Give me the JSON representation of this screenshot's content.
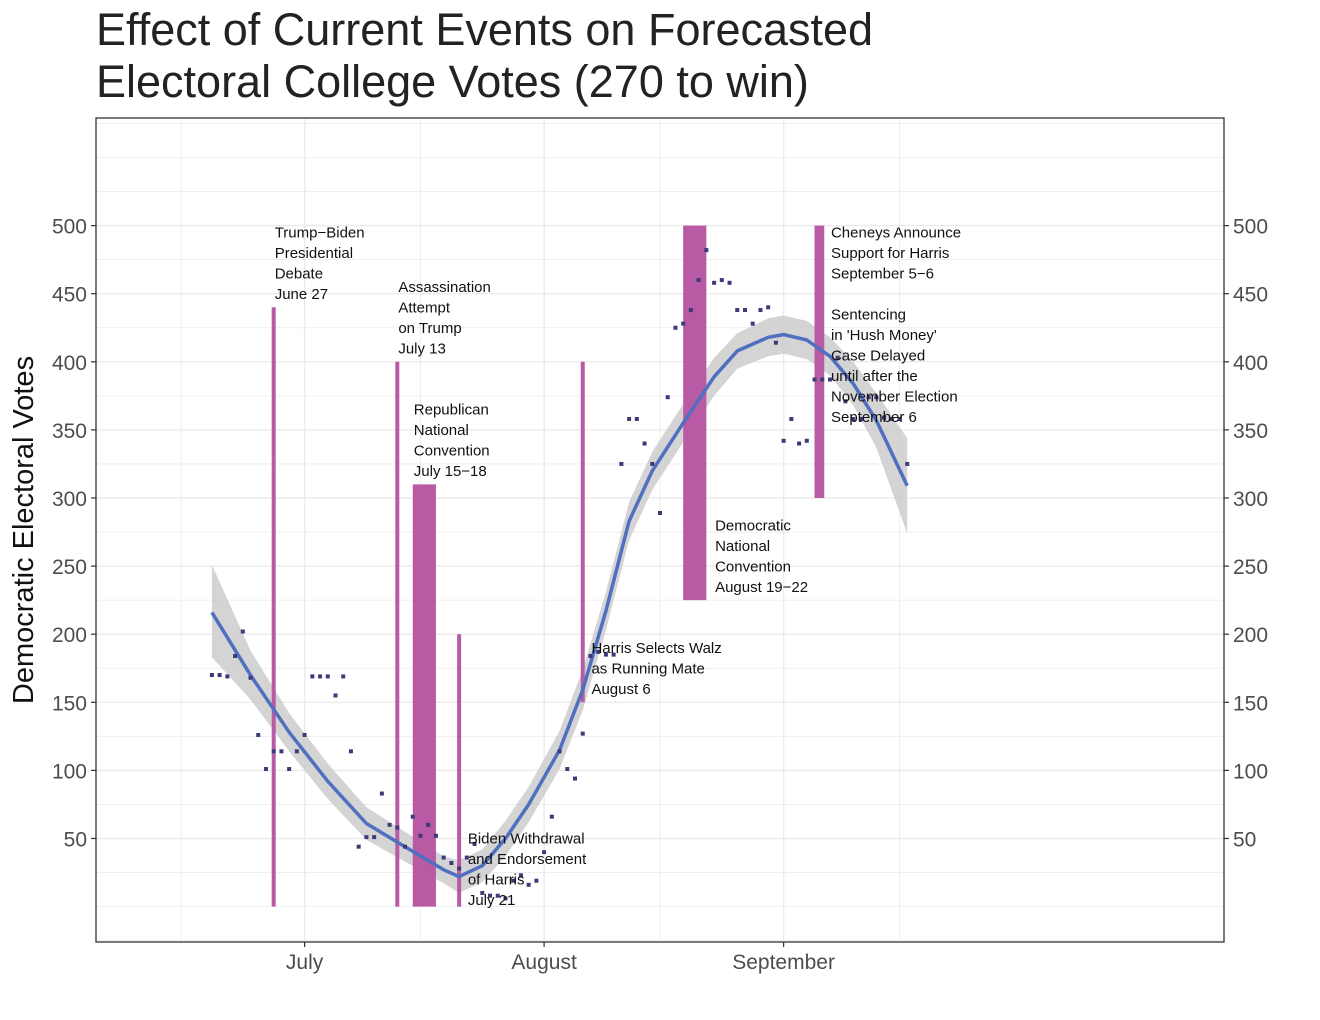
{
  "title_lines": [
    "Effect of Current Events on Forecasted",
    "Electoral College Votes (270 to win)"
  ],
  "chart_data": {
    "type": "scatter",
    "title": "Effect of Current Events on Forecasted Electoral College Votes (270 to win)",
    "xlabel": "",
    "ylabel": "Democratic Electoral Votes",
    "x_axis": {
      "type": "date",
      "range": [
        "2024-06-04",
        "2024-10-28"
      ],
      "tick_labels": [
        {
          "date": "2024-07-01",
          "label": "July"
        },
        {
          "date": "2024-08-01",
          "label": "August"
        },
        {
          "date": "2024-09-01",
          "label": "September"
        }
      ]
    },
    "y_axis": {
      "range": [
        -26,
        579
      ],
      "ticks": [
        50,
        100,
        150,
        200,
        250,
        300,
        350,
        400,
        450,
        500
      ],
      "secondary_axis_duplicate": true
    },
    "grid": true,
    "colors": {
      "points": "#3d3a7a",
      "trend": "#4f6fbf",
      "ribbon": "#cccccc",
      "events": "#b85aa4",
      "panel_border": "#333333",
      "grid": "#ebebeb"
    },
    "series": [
      {
        "kind": "points",
        "values": [
          {
            "date": "2024-06-19",
            "y": 170
          },
          {
            "date": "2024-06-20",
            "y": 170
          },
          {
            "date": "2024-06-21",
            "y": 169
          },
          {
            "date": "2024-06-22",
            "y": 184
          },
          {
            "date": "2024-06-23",
            "y": 202
          },
          {
            "date": "2024-06-24",
            "y": 168
          },
          {
            "date": "2024-06-25",
            "y": 126
          },
          {
            "date": "2024-06-26",
            "y": 101
          },
          {
            "date": "2024-06-27",
            "y": 114
          },
          {
            "date": "2024-06-28",
            "y": 114
          },
          {
            "date": "2024-06-29",
            "y": 101
          },
          {
            "date": "2024-06-30",
            "y": 114
          },
          {
            "date": "2024-07-01",
            "y": 126
          },
          {
            "date": "2024-07-02",
            "y": 169
          },
          {
            "date": "2024-07-03",
            "y": 169
          },
          {
            "date": "2024-07-04",
            "y": 169
          },
          {
            "date": "2024-07-05",
            "y": 155
          },
          {
            "date": "2024-07-06",
            "y": 169
          },
          {
            "date": "2024-07-07",
            "y": 114
          },
          {
            "date": "2024-07-08",
            "y": 44
          },
          {
            "date": "2024-07-09",
            "y": 51
          },
          {
            "date": "2024-07-10",
            "y": 51
          },
          {
            "date": "2024-07-11",
            "y": 83
          },
          {
            "date": "2024-07-12",
            "y": 60
          },
          {
            "date": "2024-07-13",
            "y": 58
          },
          {
            "date": "2024-07-14",
            "y": 44
          },
          {
            "date": "2024-07-15",
            "y": 66
          },
          {
            "date": "2024-07-16",
            "y": 52
          },
          {
            "date": "2024-07-17",
            "y": 60
          },
          {
            "date": "2024-07-18",
            "y": 52
          },
          {
            "date": "2024-07-19",
            "y": 36
          },
          {
            "date": "2024-07-20",
            "y": 32
          },
          {
            "date": "2024-07-21",
            "y": 28
          },
          {
            "date": "2024-07-22",
            "y": 36
          },
          {
            "date": "2024-07-23",
            "y": 46
          },
          {
            "date": "2024-07-24",
            "y": 10
          },
          {
            "date": "2024-07-25",
            "y": 8
          },
          {
            "date": "2024-07-26",
            "y": 8
          },
          {
            "date": "2024-07-27",
            "y": 6
          },
          {
            "date": "2024-07-28",
            "y": 19
          },
          {
            "date": "2024-07-29",
            "y": 23
          },
          {
            "date": "2024-07-30",
            "y": 16
          },
          {
            "date": "2024-07-31",
            "y": 19
          },
          {
            "date": "2024-08-01",
            "y": 40
          },
          {
            "date": "2024-08-02",
            "y": 66
          },
          {
            "date": "2024-08-03",
            "y": 114
          },
          {
            "date": "2024-08-04",
            "y": 101
          },
          {
            "date": "2024-08-05",
            "y": 94
          },
          {
            "date": "2024-08-06",
            "y": 127
          },
          {
            "date": "2024-08-07",
            "y": 184
          },
          {
            "date": "2024-08-08",
            "y": 187
          },
          {
            "date": "2024-08-09",
            "y": 185
          },
          {
            "date": "2024-08-10",
            "y": 185
          },
          {
            "date": "2024-08-11",
            "y": 325
          },
          {
            "date": "2024-08-12",
            "y": 358
          },
          {
            "date": "2024-08-13",
            "y": 358
          },
          {
            "date": "2024-08-14",
            "y": 340
          },
          {
            "date": "2024-08-15",
            "y": 325
          },
          {
            "date": "2024-08-16",
            "y": 289
          },
          {
            "date": "2024-08-17",
            "y": 374
          },
          {
            "date": "2024-08-18",
            "y": 425
          },
          {
            "date": "2024-08-19",
            "y": 428
          },
          {
            "date": "2024-08-20",
            "y": 438
          },
          {
            "date": "2024-08-21",
            "y": 460
          },
          {
            "date": "2024-08-22",
            "y": 482
          },
          {
            "date": "2024-08-23",
            "y": 458
          },
          {
            "date": "2024-08-24",
            "y": 460
          },
          {
            "date": "2024-08-25",
            "y": 458
          },
          {
            "date": "2024-08-26",
            "y": 438
          },
          {
            "date": "2024-08-27",
            "y": 438
          },
          {
            "date": "2024-08-28",
            "y": 428
          },
          {
            "date": "2024-08-29",
            "y": 438
          },
          {
            "date": "2024-08-30",
            "y": 440
          },
          {
            "date": "2024-08-31",
            "y": 414
          },
          {
            "date": "2024-09-01",
            "y": 342
          },
          {
            "date": "2024-09-02",
            "y": 358
          },
          {
            "date": "2024-09-03",
            "y": 340
          },
          {
            "date": "2024-09-04",
            "y": 342
          },
          {
            "date": "2024-09-05",
            "y": 387
          },
          {
            "date": "2024-09-06",
            "y": 387
          },
          {
            "date": "2024-09-07",
            "y": 387
          },
          {
            "date": "2024-09-08",
            "y": 403
          },
          {
            "date": "2024-09-09",
            "y": 371
          },
          {
            "date": "2024-09-10",
            "y": 358
          },
          {
            "date": "2024-09-11",
            "y": 358
          },
          {
            "date": "2024-09-12",
            "y": 374
          },
          {
            "date": "2024-09-13",
            "y": 374
          },
          {
            "date": "2024-09-14",
            "y": 359
          },
          {
            "date": "2024-09-15",
            "y": 358
          },
          {
            "date": "2024-09-16",
            "y": 358
          },
          {
            "date": "2024-09-17",
            "y": 325
          }
        ]
      },
      {
        "kind": "smoothed_trend",
        "values": [
          {
            "date": "2024-06-19",
            "y": 216
          },
          {
            "date": "2024-06-24",
            "y": 170
          },
          {
            "date": "2024-06-29",
            "y": 128
          },
          {
            "date": "2024-07-04",
            "y": 92
          },
          {
            "date": "2024-07-09",
            "y": 61
          },
          {
            "date": "2024-07-14",
            "y": 44
          },
          {
            "date": "2024-07-19",
            "y": 27
          },
          {
            "date": "2024-07-21",
            "y": 22
          },
          {
            "date": "2024-07-24",
            "y": 30
          },
          {
            "date": "2024-07-27",
            "y": 50
          },
          {
            "date": "2024-07-30",
            "y": 75
          },
          {
            "date": "2024-08-03",
            "y": 115
          },
          {
            "date": "2024-08-06",
            "y": 159
          },
          {
            "date": "2024-08-09",
            "y": 217
          },
          {
            "date": "2024-08-12",
            "y": 283
          },
          {
            "date": "2024-08-15",
            "y": 320
          },
          {
            "date": "2024-08-19",
            "y": 355
          },
          {
            "date": "2024-08-23",
            "y": 389
          },
          {
            "date": "2024-08-26",
            "y": 408
          },
          {
            "date": "2024-08-30",
            "y": 418
          },
          {
            "date": "2024-09-01",
            "y": 420
          },
          {
            "date": "2024-09-04",
            "y": 416
          },
          {
            "date": "2024-09-07",
            "y": 404
          },
          {
            "date": "2024-09-10",
            "y": 384
          },
          {
            "date": "2024-09-13",
            "y": 357
          },
          {
            "date": "2024-09-17",
            "y": 309
          }
        ],
        "ribbon": [
          {
            "date": "2024-06-19",
            "low": 183,
            "high": 251
          },
          {
            "date": "2024-06-24",
            "low": 152,
            "high": 188
          },
          {
            "date": "2024-06-29",
            "low": 114,
            "high": 142
          },
          {
            "date": "2024-07-04",
            "low": 79,
            "high": 105
          },
          {
            "date": "2024-07-09",
            "low": 49,
            "high": 73
          },
          {
            "date": "2024-07-14",
            "low": 33,
            "high": 55
          },
          {
            "date": "2024-07-19",
            "low": 17,
            "high": 37
          },
          {
            "date": "2024-07-21",
            "low": 10,
            "high": 34
          },
          {
            "date": "2024-07-24",
            "low": 18,
            "high": 42
          },
          {
            "date": "2024-07-27",
            "low": 37,
            "high": 63
          },
          {
            "date": "2024-07-30",
            "low": 62,
            "high": 88
          },
          {
            "date": "2024-08-03",
            "low": 101,
            "high": 129
          },
          {
            "date": "2024-08-06",
            "low": 144,
            "high": 174
          },
          {
            "date": "2024-08-09",
            "low": 203,
            "high": 231
          },
          {
            "date": "2024-08-12",
            "low": 269,
            "high": 297
          },
          {
            "date": "2024-08-15",
            "low": 306,
            "high": 334
          },
          {
            "date": "2024-08-19",
            "low": 341,
            "high": 369
          },
          {
            "date": "2024-08-23",
            "low": 375,
            "high": 403
          },
          {
            "date": "2024-08-26",
            "low": 395,
            "high": 421
          },
          {
            "date": "2024-08-30",
            "low": 404,
            "high": 432
          },
          {
            "date": "2024-09-01",
            "low": 406,
            "high": 434
          },
          {
            "date": "2024-09-04",
            "low": 402,
            "high": 430
          },
          {
            "date": "2024-09-07",
            "low": 390,
            "high": 418
          },
          {
            "date": "2024-09-10",
            "low": 368,
            "high": 400
          },
          {
            "date": "2024-09-13",
            "low": 337,
            "high": 377
          },
          {
            "date": "2024-09-17",
            "low": 274,
            "high": 344
          }
        ]
      }
    ],
    "events": [
      {
        "start": "2024-06-27",
        "end": "2024-06-27",
        "ymin": 0,
        "ymax": 440,
        "label_lines": [
          "Trump−Biden",
          "Presidential",
          "Debate",
          "June 27"
        ],
        "label_date": "2024-06-27",
        "label_y": 500
      },
      {
        "start": "2024-07-13",
        "end": "2024-07-13",
        "ymin": 0,
        "ymax": 400,
        "label_lines": [
          "Assassination",
          "Attempt",
          "on Trump",
          "July 13"
        ],
        "label_date": "2024-07-13",
        "label_y": 460
      },
      {
        "start": "2024-07-15",
        "end": "2024-07-18",
        "ymin": 0,
        "ymax": 310,
        "label_lines": [
          "Republican",
          "National",
          "Convention",
          "July 15−18"
        ],
        "label_date": "2024-07-15",
        "label_y": 370
      },
      {
        "start": "2024-07-21",
        "end": "2024-07-21",
        "ymin": 0,
        "ymax": 200,
        "label_lines": [
          "Biden Withdrawal",
          "and Endorsement",
          "of Harris",
          "July 21"
        ],
        "label_date": "2024-07-22",
        "label_y": 55
      },
      {
        "start": "2024-08-06",
        "end": "2024-08-06",
        "ymin": 150,
        "ymax": 400,
        "label_lines": [
          "Harris Selects Walz",
          "as Running Mate",
          "August 6"
        ],
        "label_date": "2024-08-07",
        "label_y": 195
      },
      {
        "start": "2024-08-19",
        "end": "2024-08-22",
        "ymin": 225,
        "ymax": 500,
        "label_lines": [
          "Democratic",
          "National",
          "Convention",
          "August 19−22"
        ],
        "label_date": "2024-08-23",
        "label_y": 285
      },
      {
        "start": "2024-09-05",
        "end": "2024-09-06",
        "ymin": 300,
        "ymax": 500,
        "label_lines": [
          "Cheneys Announce",
          "Support for Harris",
          "September 5−6"
        ],
        "label_date": "2024-09-07",
        "label_y": 500
      },
      {
        "start": "2024-09-06",
        "end": "2024-09-06",
        "ymin": 300,
        "ymax": 500,
        "label_lines": [
          "Sentencing",
          "in 'Hush Money'",
          "Case Delayed",
          "until after the",
          "November Election",
          "September 6"
        ],
        "label_date": "2024-09-07",
        "label_y": 440
      }
    ]
  }
}
